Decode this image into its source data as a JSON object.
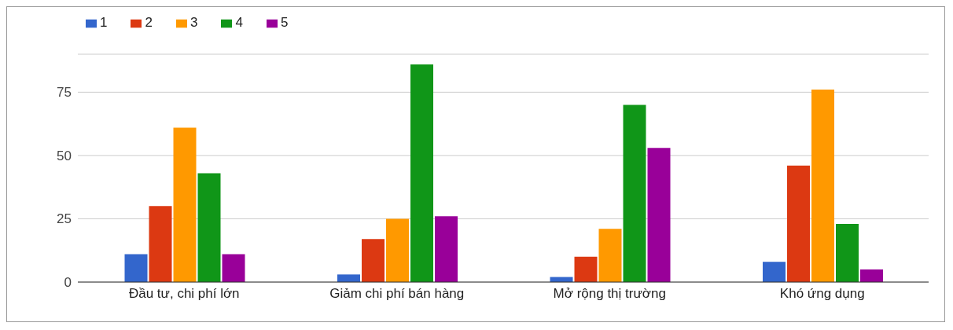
{
  "chart_data": {
    "type": "bar",
    "categories": [
      "Đầu tư, chi phí lớn",
      "Giảm chi phí bán hàng",
      "Mở rộng thị trường",
      "Khó ứng dụng"
    ],
    "series": [
      {
        "name": "1",
        "color": "#3366cc",
        "values": [
          11,
          3,
          2,
          8
        ]
      },
      {
        "name": "2",
        "color": "#dc3912",
        "values": [
          30,
          17,
          10,
          46
        ]
      },
      {
        "name": "3",
        "color": "#ff9900",
        "values": [
          61,
          25,
          21,
          76
        ]
      },
      {
        "name": "4",
        "color": "#109618",
        "values": [
          43,
          86,
          70,
          23
        ]
      },
      {
        "name": "5",
        "color": "#990099",
        "values": [
          11,
          26,
          53,
          5
        ]
      }
    ],
    "ylim": [
      0,
      90
    ],
    "yticks": [
      0,
      25,
      50,
      75
    ],
    "grid": "y",
    "legend": "top left"
  }
}
